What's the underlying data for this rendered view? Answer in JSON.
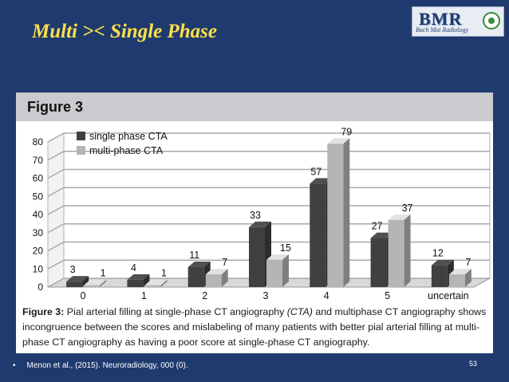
{
  "slide": {
    "title": "Multi >< Single Phase",
    "logo_letters": "BMR",
    "logo_name": "Bach Mai Radiology",
    "footer_bullet": "•",
    "footer_reference": "Menon et al., (2015). Neuroradiology, 000 (0).",
    "page_number": "53"
  },
  "figure": {
    "header": "Figure 3",
    "caption_label": "Figure 3:",
    "caption_part1": "Pial arterial filling at single-phase CT angiography",
    "caption_italic": "(CTA)",
    "caption_part2": "and multiphase CT angiography shows incongruence between the scores and mislabeling of many patients with better pial arterial filling at multi-phase CT angiography as having a poor score at single-phase CT angiography."
  },
  "chart_data": {
    "type": "bar",
    "categories": [
      "0",
      "1",
      "2",
      "3",
      "4",
      "5",
      "uncertain"
    ],
    "series": [
      {
        "name": "single phase CTA",
        "values": [
          3,
          4,
          11,
          33,
          57,
          27,
          12
        ],
        "color": "#404040"
      },
      {
        "name": "multi-phase CTA",
        "values": [
          1,
          1,
          7,
          15,
          79,
          37,
          7
        ],
        "color": "#b5b5b5"
      }
    ],
    "ylim": [
      0,
      80
    ],
    "yticks": [
      "0",
      "10",
      "20",
      "30",
      "40",
      "50",
      "60",
      "70",
      "80"
    ],
    "grid": true,
    "legend": "top-left"
  }
}
